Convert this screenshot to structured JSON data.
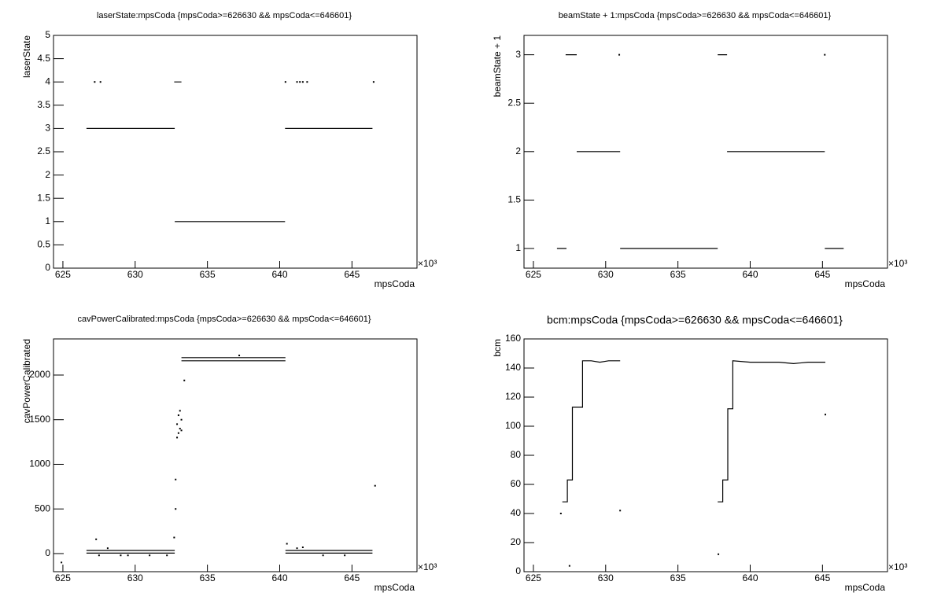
{
  "chart_data": [
    {
      "type": "scatter",
      "title": "laserState:mpsCoda {mpsCoda>=626630 && mpsCoda<=646601}",
      "x_label": "mpsCoda",
      "y_label": "laserState",
      "x_exponent": "×10³",
      "xlim": [
        624.35,
        649.5
      ],
      "xticks": [
        625,
        630,
        635,
        640,
        645
      ],
      "ylim": [
        0,
        5
      ],
      "yticks": [
        0,
        0.5,
        1,
        1.5,
        2,
        2.5,
        3,
        3.5,
        4,
        4.5,
        5
      ],
      "color": "#000000",
      "series": [
        {
          "style": "line",
          "x": [
            626.63,
            632.74,
            null,
            632.74,
            640.37,
            null,
            640.37,
            646.42,
            null,
            632.7,
            633.2
          ],
          "values": [
            3,
            3,
            null,
            1,
            1,
            null,
            3,
            3,
            null,
            4,
            4
          ]
        },
        {
          "style": "points",
          "x": [
            627.2,
            627.6,
            640.4,
            641.2,
            641.4,
            641.6,
            641.9,
            646.5
          ],
          "values": [
            4,
            4,
            4,
            4,
            4,
            4,
            4,
            4
          ]
        }
      ]
    },
    {
      "type": "scatter",
      "title": "beamState + 1:mpsCoda {mpsCoda>=626630 && mpsCoda<=646601}",
      "x_label": "mpsCoda",
      "y_label": "beamState + 1",
      "x_exponent": "×10³",
      "xlim": [
        624.35,
        649.5
      ],
      "xticks": [
        625,
        630,
        635,
        640,
        645
      ],
      "ylim": [
        0.797,
        3.2
      ],
      "yticks": [
        1,
        1.5,
        2,
        2.5,
        3
      ],
      "color": "#000000",
      "series": [
        {
          "style": "line",
          "x": [
            626.63,
            627.29,
            null,
            627.23,
            628.0,
            null,
            628.0,
            631.0,
            null,
            631.0,
            637.75,
            null,
            637.75,
            638.4,
            null,
            638.4,
            645.16,
            null,
            645.16,
            646.47
          ],
          "values": [
            1,
            1,
            null,
            3,
            3,
            null,
            2,
            2,
            null,
            1,
            1,
            null,
            3,
            3,
            null,
            2,
            2,
            null,
            1,
            1
          ]
        },
        {
          "style": "points",
          "x": [
            630.94,
            645.16
          ],
          "values": [
            3,
            3
          ]
        }
      ]
    },
    {
      "type": "scatter",
      "title": "cavPowerCalibrated:mpsCoda {mpsCoda>=626630 && mpsCoda<=646601}",
      "x_label": "mpsCoda",
      "y_label": "cavPowerCalibrated",
      "x_exponent": "×10³",
      "xlim": [
        624.35,
        649.5
      ],
      "xticks": [
        625,
        630,
        635,
        640,
        645
      ],
      "ylim": [
        -203,
        2405
      ],
      "yticks": [
        0,
        500,
        1000,
        1500,
        2000
      ],
      "color": "#000000",
      "series": [
        {
          "style": "line",
          "x": [
            626.63,
            632.74,
            null,
            626.63,
            632.74,
            null,
            633.2,
            640.4,
            null,
            633.2,
            640.4,
            null,
            640.4,
            646.42,
            null,
            640.4,
            646.42
          ],
          "values": [
            35,
            35,
            null,
            5,
            5,
            null,
            2195,
            2195,
            null,
            2160,
            2160,
            null,
            35,
            35,
            null,
            5,
            5
          ]
        },
        {
          "style": "points",
          "x": [
            627.3,
            627.5,
            628.1,
            629.0,
            629.5,
            631.0,
            632.2,
            632.7,
            632.8,
            632.8,
            632.9,
            632.9,
            633.0,
            633.0,
            633.1,
            633.1,
            633.2,
            633.2,
            633.4,
            637.2,
            640.5,
            641.2,
            641.6,
            643.0,
            644.5,
            646.6,
            624.9
          ],
          "values": [
            160,
            -20,
            60,
            -20,
            -20,
            -20,
            -20,
            180,
            500,
            830,
            1300,
            1450,
            1350,
            1550,
            1400,
            1600,
            1500,
            1380,
            1940,
            2220,
            110,
            60,
            70,
            -20,
            -20,
            760,
            -100
          ]
        }
      ]
    },
    {
      "type": "scatter",
      "title": "bcm:mpsCoda {mpsCoda>=626630 && mpsCoda<=646601}",
      "x_label": "mpsCoda",
      "y_label": "bcm",
      "x_exponent": "×10³",
      "xlim": [
        624.35,
        649.5
      ],
      "xticks": [
        625,
        630,
        635,
        640,
        645
      ],
      "ylim": [
        0,
        160
      ],
      "yticks": [
        0,
        20,
        40,
        60,
        80,
        100,
        120,
        140,
        160
      ],
      "color": "#000000",
      "series": [
        {
          "style": "line",
          "x": [
            627.0,
            627.35,
            627.35,
            627.7,
            627.7,
            628.05,
            628.05,
            628.4,
            628.4,
            629.0,
            629.6,
            630.2,
            631.0,
            null,
            637.75,
            638.1,
            638.1,
            638.45,
            638.45,
            638.8,
            638.8,
            640.0,
            641.0,
            642.0,
            643.0,
            644.0,
            645.2
          ],
          "values": [
            48,
            48,
            63,
            63,
            113,
            113,
            113,
            113,
            145,
            145,
            144,
            145,
            145,
            null,
            48,
            48,
            63,
            63,
            112,
            112,
            145,
            144,
            144,
            144,
            143,
            144,
            144
          ]
        },
        {
          "style": "points",
          "x": [
            626.9,
            627.5,
            631.0,
            637.8,
            645.2
          ],
          "values": [
            40,
            4,
            42,
            12,
            108
          ]
        }
      ]
    }
  ]
}
